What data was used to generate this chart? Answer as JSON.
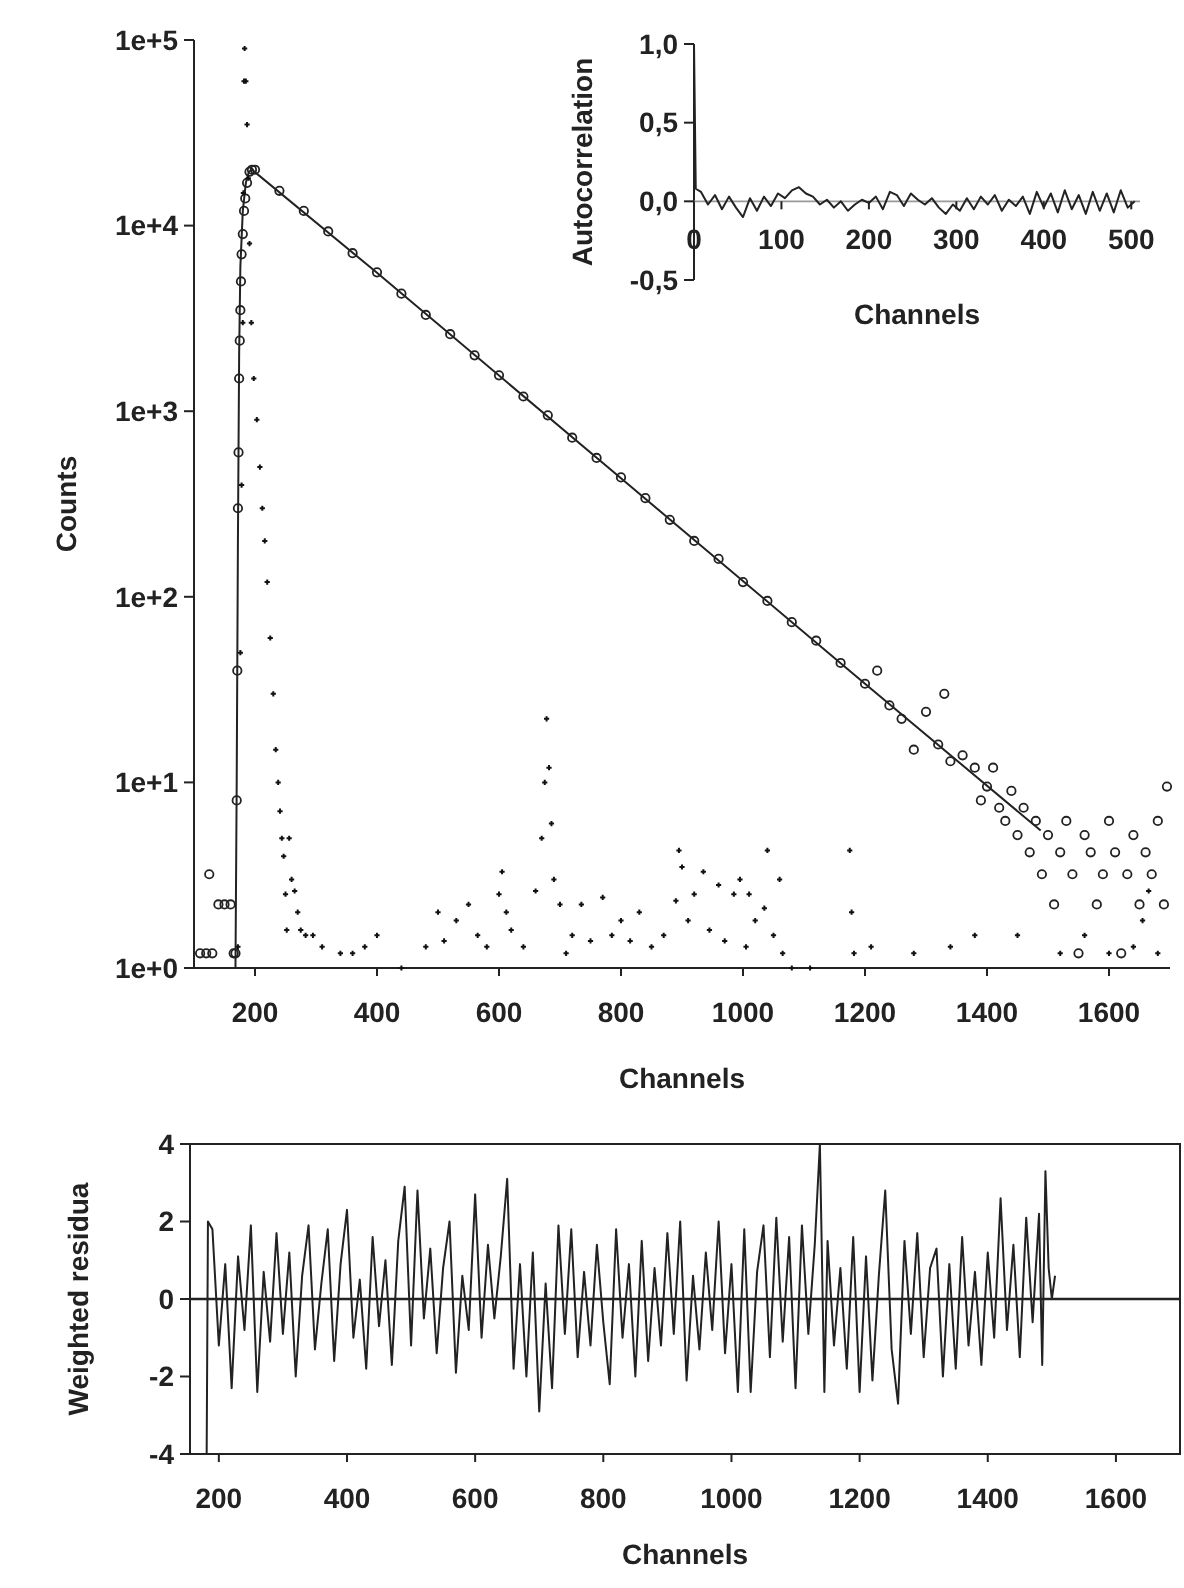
{
  "chart_data": [
    {
      "type": "scatter",
      "xlabel": "Channels",
      "ylabel": "Counts",
      "log": "y",
      "xlim": [
        100,
        1700
      ],
      "xticks": [
        200,
        400,
        600,
        800,
        1000,
        1200,
        1400,
        1600
      ],
      "ylim": [
        1,
        100000
      ],
      "yticks": [
        {
          "value": 1,
          "label": "1e+0"
        },
        {
          "value": 10,
          "label": "1e+1"
        },
        {
          "value": 100,
          "label": "1e+2"
        },
        {
          "value": 1000,
          "label": "1e+3"
        },
        {
          "value": 10000,
          "label": "1e+4"
        },
        {
          "value": 100000,
          "label": "1e+5"
        }
      ],
      "series": [
        {
          "marker": "circle",
          "color": "#222222",
          "x": [
            110,
            120,
            125,
            130,
            140,
            150,
            160,
            165,
            168,
            170,
            171,
            172,
            173,
            174,
            175,
            176,
            177,
            178,
            180,
            182,
            184,
            187,
            191,
            195,
            200,
            240,
            280,
            320,
            360,
            400,
            440,
            480,
            520,
            560,
            600,
            640,
            680,
            720,
            760,
            800,
            840,
            880,
            920,
            960,
            1000,
            1040,
            1080,
            1120,
            1160,
            1200,
            1220,
            1240,
            1260,
            1280,
            1300,
            1320,
            1330,
            1340,
            1360,
            1380,
            1390,
            1400,
            1410,
            1420,
            1430,
            1440,
            1450,
            1460,
            1470,
            1480,
            1490,
            1500,
            1510,
            1520,
            1530,
            1540,
            1550,
            1560,
            1570,
            1580,
            1590,
            1600,
            1610,
            1620,
            1630,
            1640,
            1650,
            1660,
            1670,
            1680,
            1690,
            1695
          ],
          "values": [
            1.2,
            1.2,
            3.2,
            1.2,
            2.2,
            2.2,
            2.2,
            1.2,
            1.2,
            8,
            40,
            300,
            600,
            1500,
            2400,
            3500,
            5000,
            7000,
            9000,
            12000,
            14000,
            17000,
            19500,
            20000,
            20000,
            15400,
            12000,
            9300,
            7100,
            5600,
            4300,
            3300,
            2600,
            2000,
            1560,
            1200,
            950,
            720,
            560,
            440,
            340,
            260,
            200,
            160,
            120,
            95,
            73,
            58,
            44,
            34,
            40,
            26,
            22,
            15,
            24,
            16,
            30,
            13,
            14,
            12,
            8,
            9.5,
            12,
            7.3,
            6.2,
            9,
            5.2,
            7.3,
            4.2,
            6.2,
            3.2,
            5.2,
            2.2,
            4.2,
            6.2,
            3.2,
            1.2,
            5.2,
            4.2,
            2.2,
            3.2,
            6.2,
            4.2,
            1.2,
            3.2,
            5.2,
            2.2,
            4.2,
            3.2,
            6.2,
            2.2,
            9.5
          ]
        },
        {
          "type": "line",
          "color": "#222222",
          "x": [
            168,
            170,
            172,
            174,
            176,
            180,
            185,
            190,
            195,
            400,
            800,
            1200,
            1488
          ],
          "values": [
            1,
            10,
            200,
            2000,
            6000,
            12000,
            17000,
            19500,
            20000,
            5570,
            435,
            34,
            5.5
          ]
        },
        {
          "type": "scatter",
          "marker": "cross",
          "color": "#111111",
          "x": [
            172,
            176,
            178,
            180,
            181,
            182,
            183,
            185,
            187,
            189,
            191,
            194,
            198,
            203,
            208,
            212,
            216,
            220,
            225,
            230,
            234,
            238,
            241,
            244,
            247,
            250,
            252,
            256,
            260,
            265,
            270,
            275,
            283,
            295,
            310,
            340,
            360,
            380,
            400,
            440,
            480,
            500,
            510,
            530,
            550,
            565,
            580,
            600,
            605,
            612,
            620,
            640,
            660,
            670,
            675,
            678,
            682,
            686,
            690,
            700,
            710,
            720,
            735,
            750,
            770,
            785,
            800,
            815,
            830,
            850,
            870,
            890,
            895,
            900,
            910,
            920,
            935,
            945,
            960,
            970,
            985,
            995,
            1005,
            1010,
            1020,
            1035,
            1040,
            1050,
            1060,
            1065,
            1080,
            1110,
            1175,
            1178,
            1182,
            1210,
            1280,
            1340,
            1380,
            1450,
            1520,
            1560,
            1600,
            1640,
            1655,
            1665,
            1680
          ],
          "values": [
            1.3,
            50,
            400,
            3000,
            15000,
            60000,
            90000,
            60000,
            35000,
            18000,
            8000,
            3000,
            1500,
            900,
            500,
            300,
            200,
            120,
            60,
            30,
            15,
            10,
            7,
            5,
            4,
            2.5,
            1.6,
            5,
            3,
            2.6,
            2,
            1.6,
            1.5,
            1.5,
            1.3,
            1.2,
            1.2,
            1.3,
            1.5,
            1,
            1.3,
            2,
            1.4,
            1.8,
            2.2,
            1.5,
            1.3,
            2.5,
            3.3,
            2,
            1.6,
            1.3,
            2.6,
            5,
            10,
            22,
            12,
            6,
            3,
            2.2,
            1.2,
            1.5,
            2.2,
            1.4,
            2.4,
            1.5,
            1.8,
            1.4,
            2,
            1.3,
            1.5,
            2.3,
            4.3,
            3.5,
            1.8,
            2.5,
            3.3,
            1.6,
            2.8,
            1.4,
            2.5,
            3,
            1.3,
            2.5,
            1.8,
            2.1,
            4.3,
            1.5,
            3,
            1.2,
            1,
            1,
            4.3,
            2,
            1.2,
            1.3,
            1.2,
            1.3,
            1.5,
            1.5,
            1.2,
            1.5,
            1.2,
            1.3,
            1.8,
            2.6,
            1.2
          ]
        }
      ]
    },
    {
      "type": "line",
      "xlabel": "Channels",
      "ylabel": "Autocorrelation",
      "xlim": [
        0,
        510
      ],
      "xticks": [
        0,
        100,
        200,
        300,
        400,
        500
      ],
      "ylim": [
        -0.5,
        1
      ],
      "yticks": [
        {
          "value": -0.5,
          "label": "-0,5"
        },
        {
          "value": 0,
          "label": "0,0"
        },
        {
          "value": 0.5,
          "label": "0,5"
        },
        {
          "value": 1,
          "label": "1,0"
        }
      ],
      "series": [
        {
          "color": "#222222",
          "x": [
            0,
            2,
            8,
            16,
            24,
            32,
            40,
            48,
            56,
            64,
            72,
            80,
            88,
            96,
            104,
            112,
            120,
            128,
            136,
            144,
            152,
            160,
            168,
            176,
            184,
            192,
            200,
            208,
            216,
            224,
            232,
            240,
            248,
            256,
            264,
            272,
            280,
            288,
            296,
            304,
            312,
            320,
            328,
            336,
            344,
            352,
            360,
            368,
            376,
            384,
            392,
            400,
            408,
            416,
            424,
            432,
            440,
            448,
            456,
            464,
            472,
            480,
            488,
            496,
            504
          ],
          "values": [
            1,
            0.08,
            0.06,
            -0.02,
            0.04,
            -0.05,
            0.03,
            -0.04,
            -0.1,
            0.02,
            -0.06,
            0.03,
            -0.03,
            0.05,
            0.02,
            0.07,
            0.09,
            0.05,
            0.03,
            -0.02,
            0.01,
            -0.04,
            0,
            -0.06,
            -0.02,
            0.01,
            -0.01,
            0.03,
            -0.05,
            0.06,
            0.04,
            -0.03,
            0.05,
            0.01,
            -0.02,
            0.02,
            -0.04,
            -0.08,
            -0.02,
            -0.06,
            0.02,
            -0.05,
            0.03,
            -0.02,
            0.04,
            -0.06,
            0.01,
            -0.03,
            0.03,
            -0.08,
            0.06,
            -0.04,
            0.05,
            -0.07,
            0.07,
            -0.05,
            0.04,
            -0.08,
            0.06,
            -0.06,
            0.05,
            -0.07,
            0.07,
            -0.04,
            0
          ]
        }
      ]
    },
    {
      "type": "line",
      "xlabel": "Channels",
      "ylabel": "Weighted residua",
      "xlim": [
        155,
        1700
      ],
      "xticks": [
        200,
        400,
        600,
        800,
        1000,
        1200,
        1400,
        1600
      ],
      "ylim": [
        -4,
        4
      ],
      "yticks": [
        -4,
        -2,
        0,
        2,
        4
      ],
      "ref_lines": [
        {
          "axis": "y",
          "value": 0,
          "color": "#222222"
        }
      ],
      "series": [
        {
          "color": "#222222",
          "x": [
            181,
            183,
            190,
            200,
            210,
            220,
            230,
            240,
            250,
            260,
            270,
            280,
            290,
            300,
            310,
            320,
            330,
            340,
            350,
            360,
            370,
            380,
            390,
            400,
            410,
            420,
            430,
            440,
            450,
            460,
            470,
            480,
            490,
            500,
            510,
            520,
            530,
            540,
            550,
            560,
            570,
            580,
            590,
            600,
            610,
            620,
            630,
            640,
            650,
            660,
            670,
            680,
            690,
            700,
            710,
            720,
            730,
            740,
            750,
            760,
            770,
            780,
            790,
            800,
            810,
            820,
            830,
            840,
            850,
            860,
            870,
            880,
            890,
            900,
            910,
            920,
            930,
            940,
            950,
            960,
            970,
            980,
            990,
            1000,
            1010,
            1020,
            1030,
            1040,
            1050,
            1060,
            1070,
            1080,
            1090,
            1100,
            1110,
            1120,
            1130,
            1138,
            1145,
            1150,
            1160,
            1170,
            1180,
            1190,
            1200,
            1210,
            1220,
            1230,
            1240,
            1250,
            1260,
            1270,
            1280,
            1290,
            1300,
            1310,
            1320,
            1330,
            1340,
            1350,
            1360,
            1370,
            1380,
            1390,
            1400,
            1410,
            1420,
            1430,
            1440,
            1450,
            1460,
            1470,
            1480,
            1485,
            1490,
            1495,
            1500,
            1505
          ],
          "values": [
            -4,
            2,
            1.8,
            -1.2,
            0.9,
            -2.3,
            1.1,
            -0.8,
            1.9,
            -2.4,
            0.7,
            -1.1,
            1.7,
            -0.9,
            1.2,
            -2,
            0.6,
            1.9,
            -1.3,
            0.4,
            1.8,
            -1.6,
            0.9,
            2.3,
            -1,
            0.5,
            -1.8,
            1.6,
            -0.7,
            1,
            -1.7,
            1.5,
            2.9,
            -1.2,
            2.8,
            -0.5,
            1.3,
            -1.4,
            0.8,
            2,
            -1.9,
            0.6,
            -0.8,
            2.7,
            -1,
            1.4,
            -0.5,
            1.1,
            3.1,
            -1.8,
            0.9,
            -2,
            1.2,
            -2.9,
            0.4,
            -2.3,
            1.9,
            -0.9,
            1.8,
            -1.5,
            0.7,
            -1.2,
            1.4,
            -0.6,
            -2.2,
            1.8,
            -1,
            0.9,
            -2,
            1.5,
            -1.6,
            0.8,
            -1.2,
            1.7,
            -0.9,
            2,
            -2.1,
            0.6,
            -1.3,
            1.2,
            -0.8,
            2,
            -1.4,
            0.9,
            -2.4,
            1.8,
            -2.4,
            0.7,
            1.9,
            -1.5,
            2.1,
            -1.1,
            1.6,
            -2.3,
            1.9,
            -0.9,
            1.4,
            4,
            -2.4,
            1.5,
            -1.2,
            0.8,
            -1.8,
            1.6,
            -2.4,
            1.1,
            -2.1,
            0.6,
            2.8,
            -1.3,
            -2.7,
            1.5,
            -0.9,
            1.7,
            -1.5,
            0.8,
            1.3,
            -2,
            0.9,
            -1.8,
            1.6,
            -1.2,
            0.7,
            -1.7,
            1.2,
            -1,
            2.6,
            -0.8,
            1.4,
            -1.5,
            2.1,
            -0.6,
            2.2,
            -1.7,
            3.3,
            0.8,
            0,
            0.6
          ]
        }
      ]
    }
  ]
}
